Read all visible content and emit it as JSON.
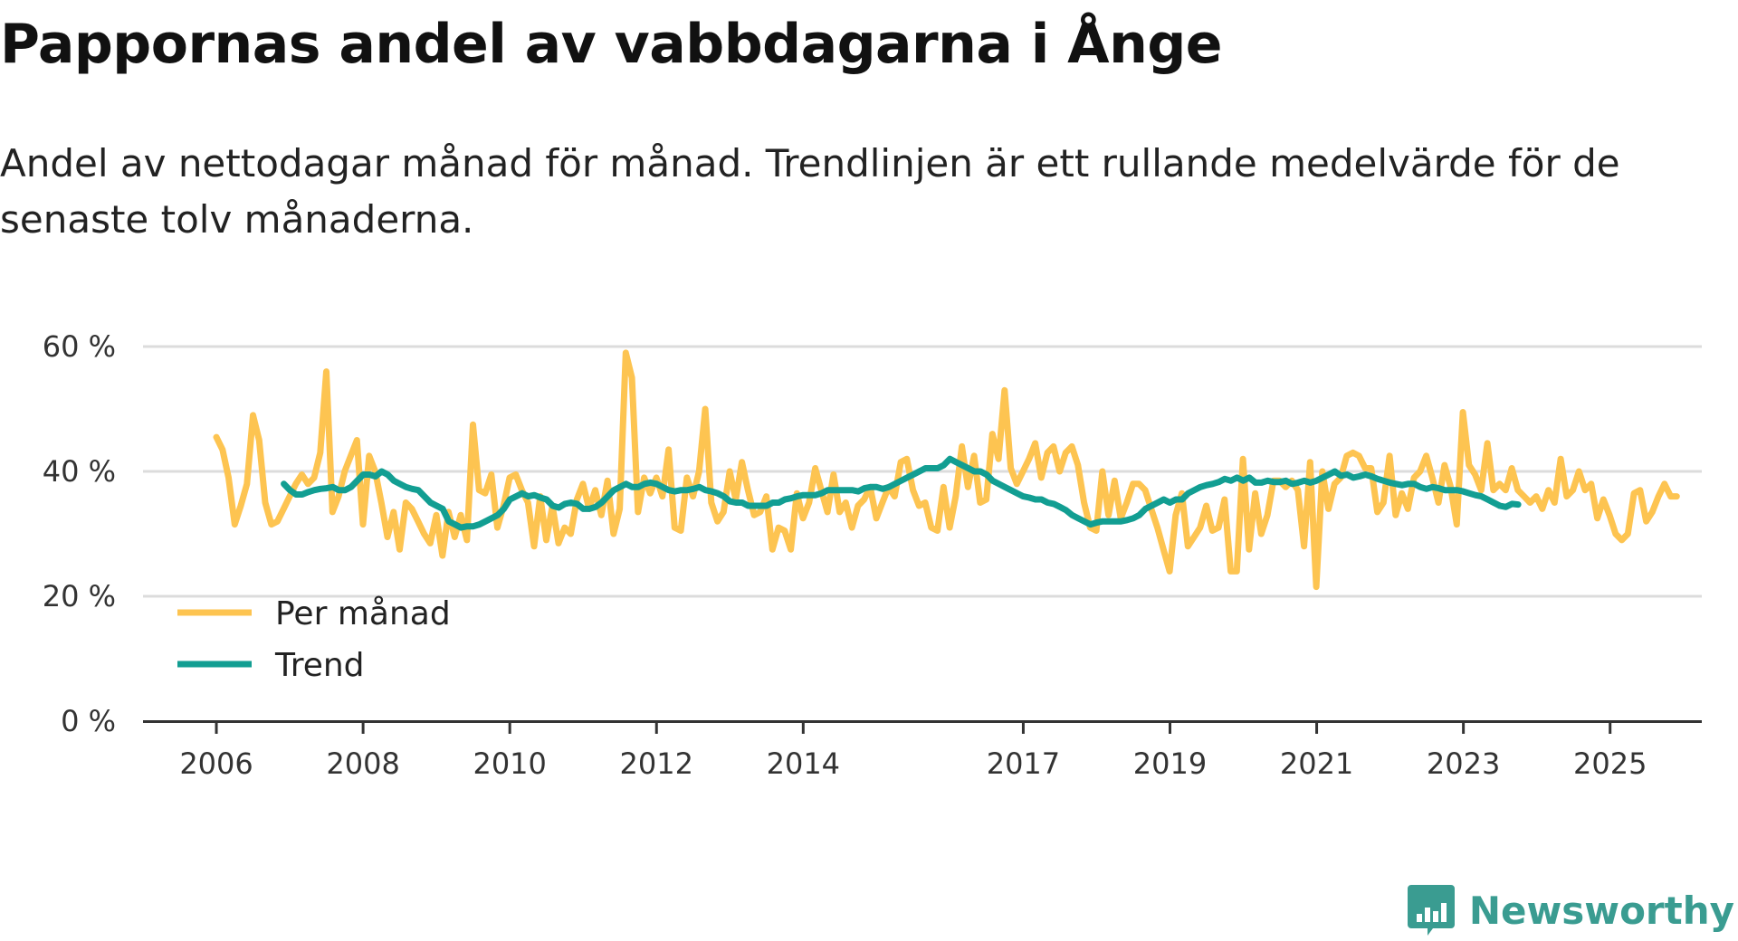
{
  "title": "Pappornas andel av vabbdagarna i Ånge",
  "subtitle": "Andel av nettodagar månad för månad. Trendlinjen är ett rullande medelvärde för de senaste tolv månaderna.",
  "brand": {
    "name": "Newsworthy",
    "icon": "bar-chart-logo-icon"
  },
  "colors": {
    "monthly": "#fdc451",
    "trend": "#129e92",
    "grid": "#dcdcdc",
    "axis": "#333333",
    "brand": "#3a9c91"
  },
  "chart_data": {
    "type": "line",
    "title": "Pappornas andel av vabbdagarna i Ånge",
    "xlabel": "",
    "ylabel": "",
    "x_range": [
      2006,
      2025.3
    ],
    "xlim": [
      2005,
      2026.25
    ],
    "ylim": [
      0,
      60
    ],
    "y_ticks": [
      0,
      20,
      40,
      60
    ],
    "y_tick_labels": [
      "0 %",
      "20 %",
      "40 %",
      "60 %"
    ],
    "x_ticks": [
      2006,
      2008,
      2010,
      2012,
      2014,
      2017,
      2019,
      2021,
      2023,
      2025
    ],
    "x_tick_labels": [
      "2006",
      "2008",
      "2010",
      "2012",
      "2014",
      "2017",
      "2019",
      "2021",
      "2023",
      "2025"
    ],
    "grid": true,
    "legend_position": "bottom-left",
    "series": [
      {
        "name": "Per månad",
        "x_start": 2006.0,
        "step": 0.0833,
        "values": [
          45.5,
          43.5,
          39,
          31.5,
          34.5,
          38,
          49,
          45,
          35,
          31.5,
          32,
          34,
          36,
          38,
          39.5,
          38,
          39,
          43,
          56,
          33.5,
          36,
          40,
          42.5,
          45,
          31.5,
          42.5,
          40,
          35,
          29.5,
          33.5,
          27.5,
          35,
          34,
          32,
          30,
          28.5,
          33,
          26.5,
          33.5,
          29.5,
          33,
          29,
          47.5,
          37,
          36.5,
          39.5,
          31,
          34.5,
          39,
          39.5,
          37,
          35,
          28,
          36,
          29,
          34.5,
          28.5,
          31,
          30,
          35.5,
          38,
          34,
          37,
          33,
          38.5,
          30,
          34,
          59,
          55,
          33.5,
          39,
          36.5,
          39,
          36,
          43.5,
          31,
          30.5,
          39,
          36,
          40,
          50,
          35,
          32,
          33.5,
          40,
          35.5,
          41.5,
          37,
          33,
          33.5,
          36,
          27.5,
          31,
          30.5,
          27.5,
          36.5,
          32.5,
          35,
          40.5,
          37,
          33.5,
          39.5,
          33.5,
          35,
          31,
          34.5,
          35.5,
          37.5,
          32.5,
          35,
          37.5,
          36,
          41.5,
          42,
          37,
          34.5,
          35,
          31,
          30.5,
          37.5,
          31,
          36,
          44,
          37.5,
          42.5,
          35,
          35.5,
          46,
          42,
          53,
          40.5,
          38,
          40,
          42,
          44.5,
          39,
          43,
          44,
          40,
          43,
          44,
          41,
          35,
          31,
          30.5,
          40,
          33,
          38.5,
          32.5,
          35,
          38,
          38,
          37,
          34,
          31,
          27.5,
          24,
          33,
          36.5,
          28,
          29.5,
          31,
          34.5,
          30.5,
          31,
          35.5,
          24,
          24,
          42,
          27.5,
          36.5,
          30,
          33,
          38.5,
          38.5,
          37.5,
          38.5,
          37,
          28,
          41.5,
          21.5,
          40,
          34,
          38,
          39,
          42.5,
          43,
          42.5,
          40.5,
          40.5,
          33.5,
          35,
          42.5,
          33,
          36.5,
          34,
          39,
          40,
          42.5,
          39,
          35,
          41,
          37.5,
          31.5,
          49.5,
          41,
          39.5,
          37,
          44.5,
          37,
          38,
          37,
          40.5,
          37,
          36,
          35,
          36,
          34,
          37,
          35,
          42,
          36,
          37,
          40,
          37,
          38,
          32.5,
          35.5,
          33,
          30,
          29,
          30,
          36.5,
          37,
          32,
          33.5,
          36,
          38,
          36,
          36
        ]
      },
      {
        "name": "Trend",
        "x_start": 2006.92,
        "step": 0.0833,
        "values": [
          38,
          37,
          36.3,
          36.3,
          36.7,
          37,
          37.2,
          37.3,
          37.5,
          37,
          37,
          37.5,
          38.5,
          39.5,
          39.5,
          39.2,
          40,
          39.5,
          38.5,
          38,
          37.5,
          37.2,
          37,
          36,
          35,
          34.5,
          34,
          32,
          31.5,
          31,
          31.2,
          31.2,
          31.5,
          32,
          32.5,
          33,
          34,
          35.5,
          36,
          36.5,
          36,
          36.2,
          35.8,
          35.5,
          34.5,
          34.2,
          34.8,
          35,
          34.8,
          34,
          34,
          34.3,
          35,
          36,
          37,
          37.5,
          38,
          37.5,
          37.5,
          38,
          38.2,
          38,
          37.5,
          37,
          36.8,
          37,
          37,
          37.2,
          37.5,
          37,
          36.8,
          36.5,
          36,
          35.2,
          35,
          35,
          34.5,
          34.5,
          34.5,
          34.5,
          35,
          35,
          35.5,
          35.7,
          36,
          36.2,
          36.2,
          36.2,
          36.5,
          37,
          37,
          37,
          37,
          37,
          36.8,
          37.3,
          37.5,
          37.5,
          37.2,
          37.5,
          38,
          38.5,
          39,
          39.5,
          40,
          40.5,
          40.5,
          40.5,
          41,
          42,
          41.5,
          41,
          40.5,
          40,
          40,
          39.5,
          38.5,
          38,
          37.5,
          37,
          36.5,
          36,
          35.8,
          35.5,
          35.5,
          35,
          34.8,
          34.3,
          33.8,
          33,
          32.5,
          32,
          31.5,
          31.8,
          32,
          32,
          32,
          32,
          32.2,
          32.5,
          33,
          34,
          34.5,
          35,
          35.5,
          35,
          35.5,
          35.5,
          36.5,
          37,
          37.5,
          37.8,
          38,
          38.3,
          38.8,
          38.5,
          39,
          38.5,
          39,
          38.2,
          38.2,
          38.5,
          38.3,
          38.3,
          38.5,
          38,
          38.2,
          38.5,
          38.2,
          38.5,
          39,
          39.5,
          40,
          39.3,
          39.5,
          39,
          39.2,
          39.5,
          39.2,
          38.8,
          38.5,
          38.2,
          38,
          37.8,
          38,
          38,
          37.5,
          37.2,
          37.5,
          37.3,
          37,
          37,
          37,
          36.8,
          36.5,
          36.2,
          36,
          35.5,
          35,
          34.5,
          34.3,
          34.8,
          34.7
        ]
      }
    ]
  }
}
